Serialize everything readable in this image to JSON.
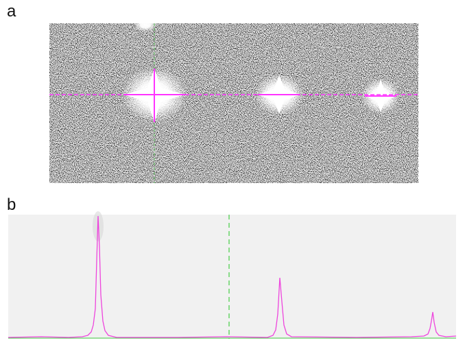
{
  "figure": {
    "panels": [
      {
        "label": "a"
      },
      {
        "label": "b"
      }
    ]
  }
}
